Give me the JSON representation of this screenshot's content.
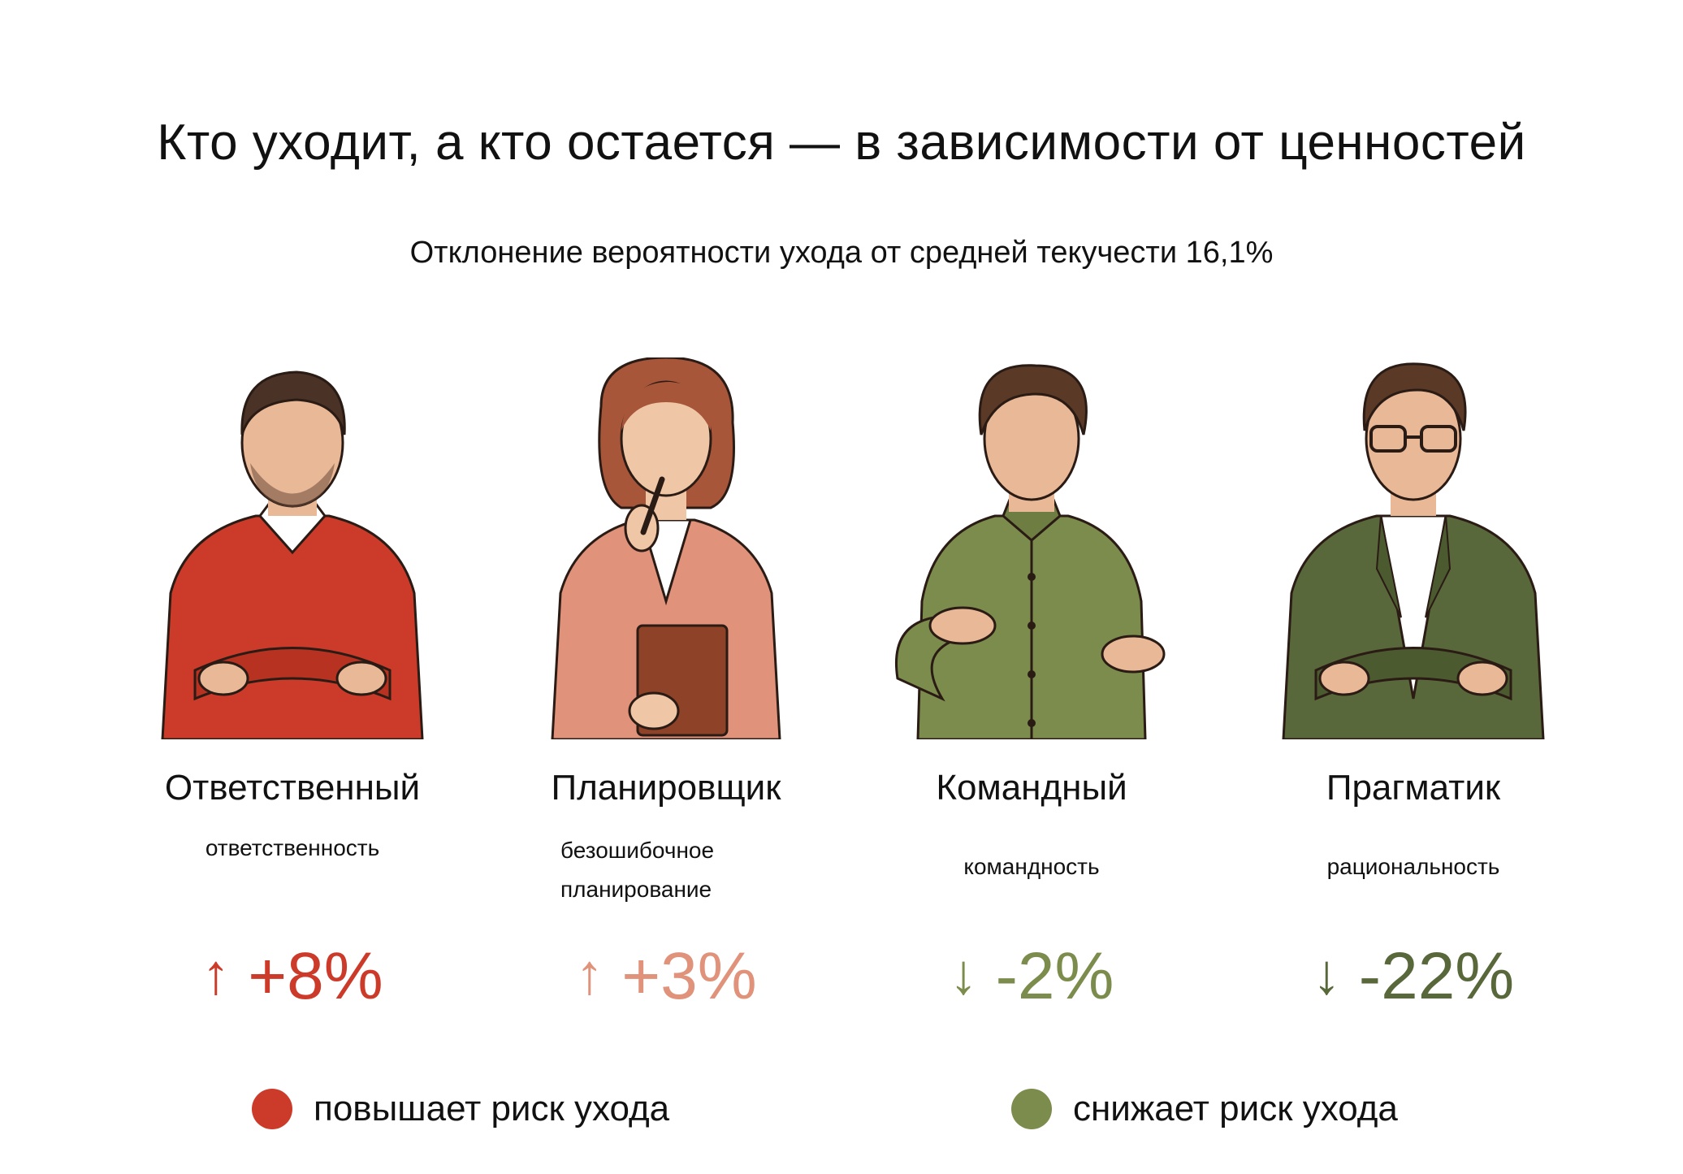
{
  "title": "Кто уходит, а кто остается — в зависимости от ценностей",
  "subtitle": "Отклонение вероятности ухода от средней текучести 16,1%",
  "colors": {
    "raises": "#cc3b2a",
    "raises_light": "#e0927a",
    "lowers_light": "#7c8c4c",
    "lowers": "#59683a"
  },
  "personas": [
    {
      "name": "Ответственный",
      "trait": "ответственность",
      "arrow": "↑",
      "delta": "+8%",
      "color": "#cc3b2a",
      "icon": "man-red-sweater-icon"
    },
    {
      "name": "Планировщик",
      "trait": "безошибочное\nпланирование",
      "arrow": "↑",
      "delta": "+3%",
      "color": "#e0927a",
      "icon": "woman-with-pen-and-notebook-icon"
    },
    {
      "name": "Командный",
      "trait": "командность",
      "arrow": "↓",
      "delta": "-2%",
      "color": "#7c8c4c",
      "icon": "man-green-shirt-gesturing-icon"
    },
    {
      "name": "Прагматик",
      "trait": "рациональность",
      "arrow": "↓",
      "delta": "-22%",
      "color": "#59683a",
      "icon": "man-with-glasses-blazer-icon"
    }
  ],
  "legend": [
    {
      "label": "повышает риск ухода",
      "color": "#cc3b2a"
    },
    {
      "label": "снижает риск ухода",
      "color": "#7c8c4c"
    }
  ]
}
